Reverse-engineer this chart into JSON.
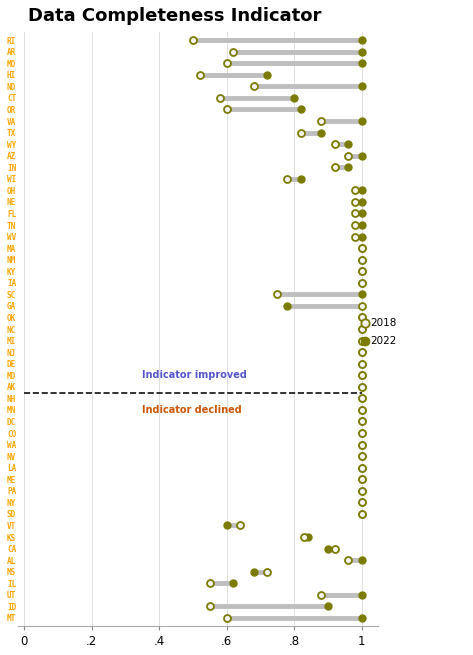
{
  "title": "Data Completeness Indicator",
  "title_fontsize": 13,
  "states": [
    "RI",
    "AR",
    "MO",
    "HI",
    "ND",
    "CT",
    "OR",
    "VA",
    "TX",
    "WY",
    "AZ",
    "IN",
    "WI",
    "OH",
    "NE",
    "FL",
    "TN",
    "WV",
    "MA",
    "NM",
    "KY",
    "IA",
    "SC",
    "GA",
    "OK",
    "NC",
    "MI",
    "NJ",
    "DE",
    "MD",
    "AK",
    "NH",
    "MN",
    "DC",
    "CO",
    "WA",
    "NV",
    "LA",
    "ME",
    "PA",
    "NY",
    "SD",
    "VT",
    "KS",
    "CA",
    "AL",
    "MS",
    "IL",
    "UT",
    "ID",
    "MT"
  ],
  "val2018": [
    0.5,
    0.62,
    0.6,
    0.52,
    0.68,
    0.58,
    0.6,
    0.88,
    0.82,
    0.92,
    0.96,
    0.92,
    0.78,
    0.98,
    0.98,
    0.98,
    0.98,
    0.98,
    1.0,
    1.0,
    1.0,
    1.0,
    0.75,
    1.0,
    1.0,
    1.0,
    1.0,
    1.0,
    1.0,
    1.0,
    1.0,
    1.0,
    1.0,
    1.0,
    1.0,
    1.0,
    1.0,
    1.0,
    1.0,
    1.0,
    1.0,
    1.0,
    0.64,
    0.83,
    0.92,
    0.96,
    0.72,
    0.55,
    0.88,
    0.55,
    0.6
  ],
  "val2022": [
    1.0,
    1.0,
    1.0,
    0.72,
    1.0,
    0.8,
    0.82,
    1.0,
    0.88,
    0.96,
    1.0,
    0.96,
    0.82,
    1.0,
    1.0,
    1.0,
    1.0,
    1.0,
    1.0,
    1.0,
    1.0,
    1.0,
    1.0,
    0.78,
    1.0,
    1.0,
    1.0,
    1.0,
    1.0,
    1.0,
    1.0,
    1.0,
    1.0,
    1.0,
    1.0,
    1.0,
    1.0,
    1.0,
    1.0,
    1.0,
    1.0,
    1.0,
    0.6,
    0.84,
    0.9,
    1.0,
    0.68,
    0.62,
    1.0,
    0.9,
    1.0
  ],
  "improved_label": "Indicator improved",
  "declined_label": "Indicator declined",
  "divider_state": "AK",
  "divider_index": 30,
  "state_color": "#FFA500",
  "dot2018_facecolor": "#F5F5F5",
  "dot2018_edgecolor": "#7B7B00",
  "dot2022_color": "#7B7B00",
  "line_color": "#BEBEBE",
  "dashed_line_color": "#111111",
  "improved_text_color": "#5555CC",
  "declined_text_color": "#CC5500",
  "background_color": "#FFFFFF",
  "grid_color": "#E0E0E0",
  "xlabel_values": [
    "0",
    ".2",
    ".4",
    ".6",
    ".8",
    "1"
  ],
  "xlabel_ticks": [
    0.0,
    0.2,
    0.4,
    0.6,
    0.8,
    1.0
  ],
  "xlim": [
    0.0,
    1.0
  ],
  "legend_2018_label": "2018",
  "legend_2022_label": "2022"
}
